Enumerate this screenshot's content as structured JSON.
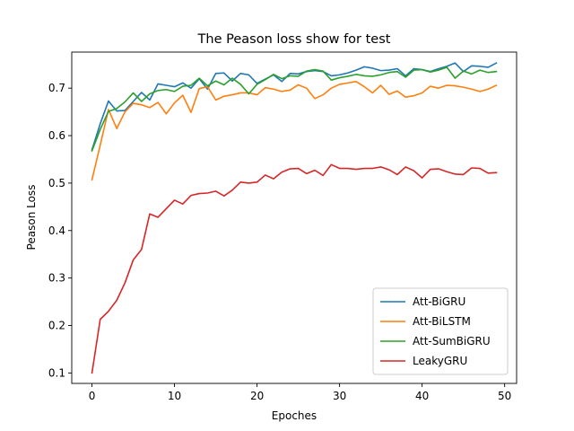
{
  "chart_data": {
    "type": "line",
    "title": "The Peason loss show for test",
    "xlabel": "Epoches",
    "ylabel": "Peason Loss",
    "xlim": [
      -2.45,
      51.45
    ],
    "ylim": [
      0.078,
      0.776
    ],
    "xticks": [
      0,
      10,
      20,
      30,
      40,
      50
    ],
    "yticks": [
      0.1,
      0.2,
      0.3,
      0.4,
      0.5,
      0.6,
      0.7
    ],
    "legend_position": "lower-right",
    "grid": false,
    "x": [
      0,
      1,
      2,
      3,
      4,
      5,
      6,
      7,
      8,
      9,
      10,
      11,
      12,
      13,
      14,
      15,
      16,
      17,
      18,
      19,
      20,
      21,
      22,
      23,
      24,
      25,
      26,
      27,
      28,
      29,
      30,
      31,
      32,
      33,
      34,
      35,
      36,
      37,
      38,
      39,
      40,
      41,
      42,
      43,
      44,
      45,
      46,
      47,
      48,
      49
    ],
    "series": [
      {
        "name": "Att-BiGRU",
        "color": "#1f77b4",
        "values": [
          0.57,
          0.625,
          0.673,
          0.652,
          0.653,
          0.672,
          0.691,
          0.675,
          0.709,
          0.706,
          0.703,
          0.711,
          0.7,
          0.72,
          0.698,
          0.731,
          0.732,
          0.715,
          0.731,
          0.728,
          0.71,
          0.719,
          0.728,
          0.714,
          0.731,
          0.73,
          0.735,
          0.737,
          0.735,
          0.726,
          0.728,
          0.732,
          0.738,
          0.745,
          0.742,
          0.737,
          0.738,
          0.741,
          0.726,
          0.741,
          0.739,
          0.735,
          0.741,
          0.746,
          0.753,
          0.735,
          0.747,
          0.746,
          0.744,
          0.753
        ]
      },
      {
        "name": "Att-BiLSTM",
        "color": "#ff7f0e",
        "values": [
          0.507,
          0.58,
          0.655,
          0.615,
          0.65,
          0.668,
          0.665,
          0.659,
          0.67,
          0.646,
          0.669,
          0.685,
          0.649,
          0.699,
          0.703,
          0.675,
          0.683,
          0.686,
          0.69,
          0.69,
          0.686,
          0.701,
          0.698,
          0.693,
          0.696,
          0.707,
          0.7,
          0.678,
          0.686,
          0.7,
          0.708,
          0.711,
          0.714,
          0.703,
          0.69,
          0.706,
          0.687,
          0.694,
          0.681,
          0.684,
          0.69,
          0.704,
          0.7,
          0.706,
          0.705,
          0.702,
          0.698,
          0.693,
          0.698,
          0.706
        ]
      },
      {
        "name": "Att-SumBiGRU",
        "color": "#2ca02c",
        "values": [
          0.568,
          0.613,
          0.651,
          0.657,
          0.671,
          0.69,
          0.672,
          0.688,
          0.695,
          0.697,
          0.693,
          0.704,
          0.706,
          0.721,
          0.705,
          0.715,
          0.707,
          0.721,
          0.708,
          0.688,
          0.708,
          0.718,
          0.729,
          0.72,
          0.726,
          0.725,
          0.736,
          0.739,
          0.736,
          0.717,
          0.722,
          0.725,
          0.729,
          0.726,
          0.725,
          0.728,
          0.733,
          0.735,
          0.723,
          0.738,
          0.739,
          0.734,
          0.738,
          0.744,
          0.721,
          0.736,
          0.73,
          0.738,
          0.733,
          0.735
        ]
      },
      {
        "name": "LeakyGRU",
        "color": "#d62728",
        "values": [
          0.1,
          0.213,
          0.23,
          0.253,
          0.29,
          0.338,
          0.36,
          0.435,
          0.428,
          0.446,
          0.464,
          0.456,
          0.474,
          0.478,
          0.479,
          0.483,
          0.473,
          0.485,
          0.502,
          0.5,
          0.502,
          0.517,
          0.509,
          0.523,
          0.53,
          0.531,
          0.52,
          0.527,
          0.516,
          0.539,
          0.531,
          0.531,
          0.529,
          0.531,
          0.531,
          0.534,
          0.528,
          0.518,
          0.534,
          0.526,
          0.511,
          0.529,
          0.53,
          0.524,
          0.519,
          0.518,
          0.532,
          0.531,
          0.521,
          0.522
        ]
      }
    ]
  }
}
